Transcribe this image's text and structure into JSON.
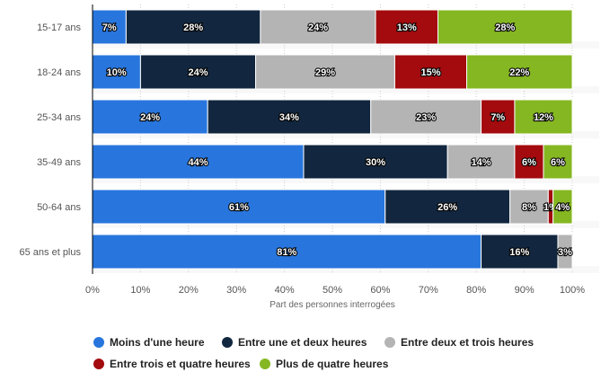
{
  "chart_data": {
    "type": "bar",
    "orientation": "horizontal",
    "stacked": true,
    "categories": [
      "15-17 ans",
      "18-24 ans",
      "25-34 ans",
      "35-49 ans",
      "50-64 ans",
      "65 ans et plus"
    ],
    "series": [
      {
        "name": "Moins d'une heure",
        "color": "#2876dd",
        "values": [
          7,
          10,
          24,
          44,
          61,
          81
        ]
      },
      {
        "name": "Entre une et deux heures",
        "color": "#12273f",
        "values": [
          28,
          24,
          34,
          30,
          26,
          16
        ]
      },
      {
        "name": "Entre deux et trois heures",
        "color": "#b4b4b4",
        "values": [
          24,
          29,
          23,
          14,
          8,
          3
        ]
      },
      {
        "name": "Entre trois et quatre heures",
        "color": "#a30b0e",
        "values": [
          13,
          15,
          7,
          6,
          1,
          0
        ]
      },
      {
        "name": "Plus de quatre heures",
        "color": "#85b722",
        "values": [
          28,
          22,
          12,
          6,
          4,
          0
        ]
      }
    ],
    "xlabel": "Part des personnes interrogées",
    "ylabel": "",
    "xlim": [
      0,
      100
    ],
    "xticks": [
      "0%",
      "10%",
      "20%",
      "30%",
      "40%",
      "50%",
      "60%",
      "70%",
      "80%",
      "90%",
      "100%"
    ],
    "grid": true,
    "legend_position": "bottom"
  }
}
